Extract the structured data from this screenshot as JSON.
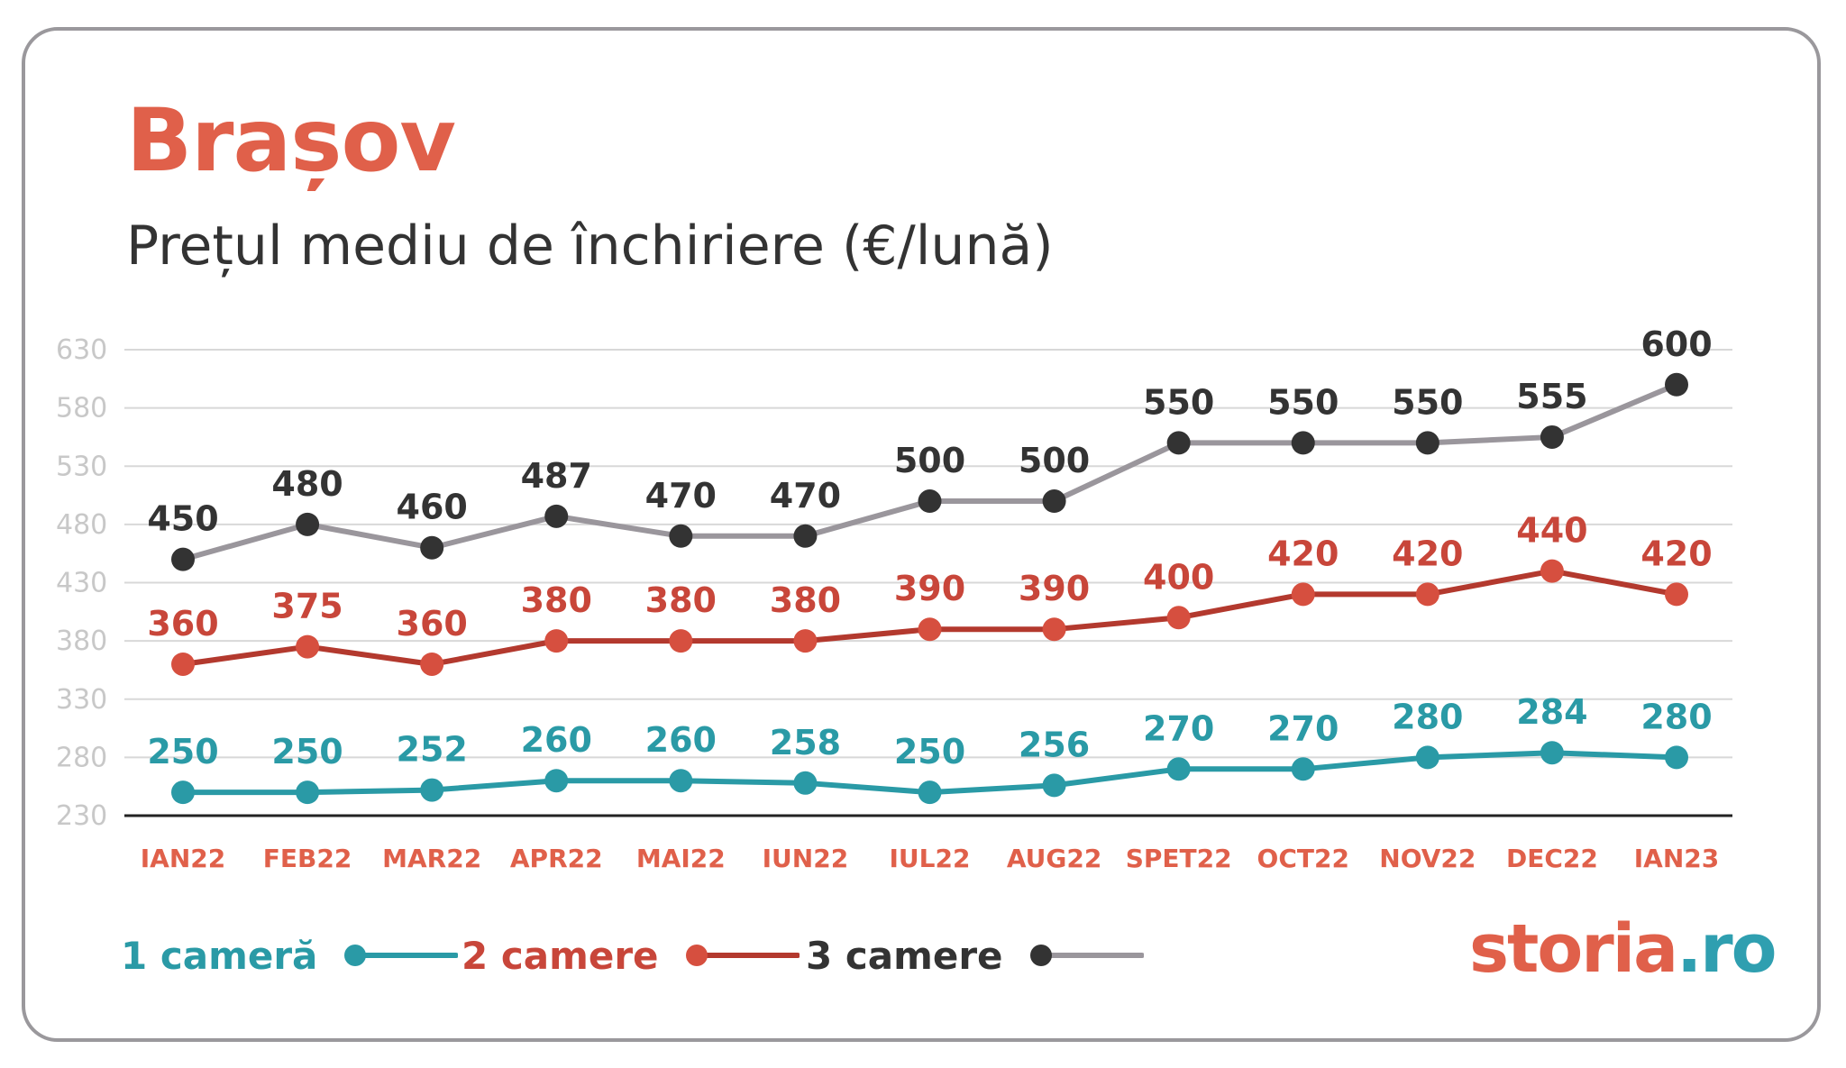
{
  "header": {
    "title": "Brașov",
    "subtitle": "Prețul mediu de închiriere (€/lună)"
  },
  "brand": {
    "part1": "storia",
    "part2": ".ro"
  },
  "colors": {
    "title": "#e0604a",
    "series_1": "#2a9aa6",
    "series_2": "#b3392e",
    "series_2_points": "#d64f3f",
    "series_3_line": "#9a969c",
    "series_3_points": "#333333",
    "grid": "#d8d8d8",
    "axis": "#222222",
    "ytick": "#c8c8c8",
    "xtick": "#e0604a"
  },
  "chart_data": {
    "type": "line",
    "title": "Brașov",
    "subtitle": "Prețul mediu de închiriere (€/lună)",
    "categories": [
      "IAN22",
      "FEB22",
      "MAR22",
      "APR22",
      "MAI22",
      "IUN22",
      "IUL22",
      "AUG22",
      "SPET22",
      "OCT22",
      "NOV22",
      "DEC22",
      "IAN23"
    ],
    "yticks": [
      630,
      580,
      530,
      480,
      430,
      380,
      330,
      280,
      230
    ],
    "ylim": [
      230,
      630
    ],
    "grid": true,
    "legend_position": "bottom-left",
    "series": [
      {
        "name": "1 cameră",
        "values": [
          250,
          250,
          252,
          260,
          260,
          258,
          250,
          256,
          270,
          270,
          280,
          284,
          280
        ]
      },
      {
        "name": "2 camere",
        "values": [
          360,
          375,
          360,
          380,
          380,
          380,
          390,
          390,
          400,
          420,
          420,
          440,
          420
        ]
      },
      {
        "name": "3 camere",
        "values": [
          450,
          480,
          460,
          487,
          470,
          470,
          500,
          500,
          550,
          550,
          550,
          555,
          600
        ]
      }
    ]
  }
}
